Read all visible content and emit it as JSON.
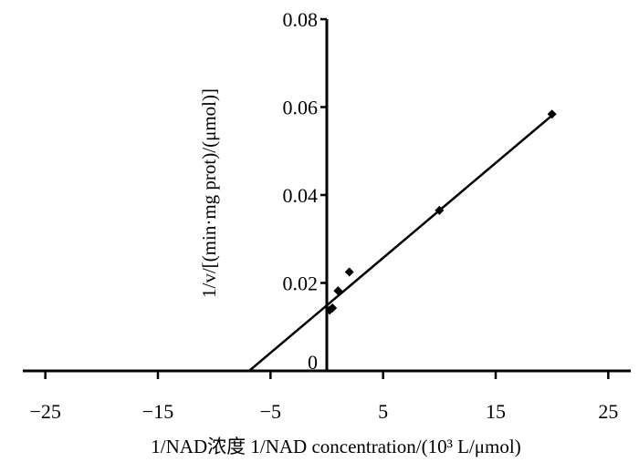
{
  "chart_data": {
    "type": "scatter",
    "title": "",
    "xlabel": "1/NAD浓度  1/NAD  concentration/(10³ L/μmol)",
    "ylabel": "1/v/[(min·mg prot)/(μmol)]",
    "xlim": [
      -27,
      27
    ],
    "ylim": [
      0,
      0.08
    ],
    "x_ticks": [
      -25,
      -15,
      -5,
      5,
      15,
      25
    ],
    "y_ticks": [
      0,
      0.02,
      0.04,
      0.06,
      0.08
    ],
    "x_tick_labels": [
      "−25",
      "−15",
      "−5",
      "5",
      "15",
      "25"
    ],
    "y_tick_labels": [
      "0",
      "0.02",
      "0.04",
      "0.06",
      "0.08"
    ],
    "grid": false,
    "series": [
      {
        "marker": "diamond",
        "color": "#000000",
        "points": [
          {
            "x": 0.25,
            "y": 0.0138
          },
          {
            "x": 0.5,
            "y": 0.0143
          },
          {
            "x": 1.0,
            "y": 0.0182
          },
          {
            "x": 2.0,
            "y": 0.0225
          },
          {
            "x": 10.0,
            "y": 0.0365
          },
          {
            "x": 20.0,
            "y": 0.0584
          }
        ]
      }
    ],
    "fit_line": {
      "color": "#000000",
      "x_start": -6.9,
      "x_end": 20.1,
      "y_start": 0.0,
      "y_end": 0.0583
    }
  }
}
